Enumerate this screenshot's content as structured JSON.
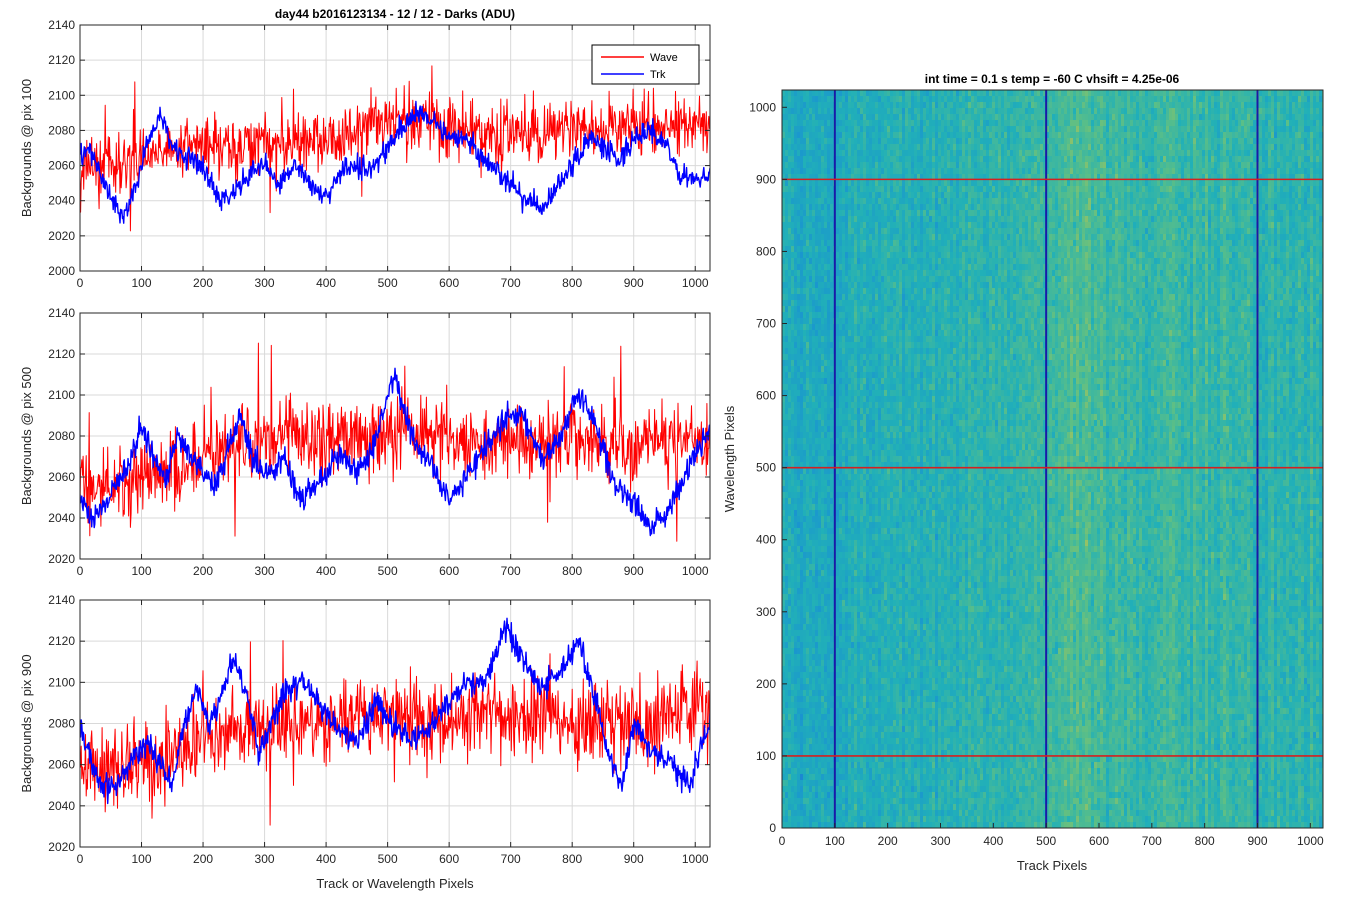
{
  "figure_title": "day44 b2016123134 - 12 / 12 - Darks (ADU)",
  "chart_data": [
    {
      "type": "line",
      "ylabel": "Backgrounds @ pix 100",
      "xlabel": "",
      "xlim": [
        0,
        1024
      ],
      "ylim": [
        2000,
        2140
      ],
      "xticks": [
        0,
        100,
        200,
        300,
        400,
        500,
        600,
        700,
        800,
        900,
        1000
      ],
      "yticks": [
        2000,
        2020,
        2040,
        2060,
        2080,
        2100,
        2120,
        2140
      ],
      "grid": true,
      "legend": "top-right",
      "series": [
        {
          "name": "Wave",
          "color": "#ff0000",
          "mean": 2075,
          "trend": 0.012,
          "noise": 12,
          "x": [
            0,
            100,
            200,
            300,
            400,
            500,
            600,
            700,
            800,
            900,
            1000,
            1024
          ],
          "y": [
            2060,
            2065,
            2070,
            2072,
            2075,
            2085,
            2082,
            2078,
            2080,
            2083,
            2085,
            2082
          ]
        },
        {
          "name": "Trk",
          "color": "#0000ff",
          "x": [
            0,
            15,
            30,
            50,
            70,
            90,
            110,
            130,
            150,
            175,
            200,
            225,
            250,
            275,
            300,
            325,
            350,
            375,
            400,
            425,
            450,
            475,
            500,
            525,
            550,
            575,
            600,
            625,
            650,
            675,
            700,
            725,
            750,
            775,
            800,
            825,
            850,
            875,
            900,
            925,
            950,
            975,
            1000,
            1024
          ],
          "y": [
            2065,
            2070,
            2058,
            2042,
            2030,
            2048,
            2072,
            2090,
            2070,
            2065,
            2060,
            2040,
            2045,
            2055,
            2062,
            2048,
            2062,
            2048,
            2042,
            2058,
            2060,
            2058,
            2070,
            2082,
            2090,
            2085,
            2075,
            2078,
            2065,
            2058,
            2050,
            2040,
            2035,
            2048,
            2060,
            2075,
            2072,
            2062,
            2075,
            2080,
            2072,
            2055,
            2050,
            2058
          ]
        }
      ]
    },
    {
      "type": "line",
      "ylabel": "Backgrounds @ pix 500",
      "xlabel": "",
      "xlim": [
        0,
        1024
      ],
      "ylim": [
        2020,
        2140
      ],
      "xticks": [
        0,
        100,
        200,
        300,
        400,
        500,
        600,
        700,
        800,
        900,
        1000
      ],
      "yticks": [
        2020,
        2040,
        2060,
        2080,
        2100,
        2120,
        2140
      ],
      "grid": true,
      "series": [
        {
          "name": "Wave",
          "color": "#ff0000",
          "mean": 2075,
          "trend": 0.01,
          "noise": 13,
          "x": [
            0,
            100,
            200,
            300,
            400,
            500,
            600,
            700,
            800,
            900,
            1000,
            1024
          ],
          "y": [
            2055,
            2060,
            2070,
            2078,
            2080,
            2082,
            2080,
            2075,
            2080,
            2075,
            2080,
            2075
          ]
        },
        {
          "name": "Trk",
          "color": "#0000ff",
          "x": [
            0,
            20,
            40,
            60,
            80,
            100,
            120,
            140,
            160,
            180,
            200,
            220,
            240,
            260,
            280,
            300,
            330,
            360,
            390,
            420,
            450,
            470,
            490,
            510,
            540,
            570,
            600,
            630,
            660,
            690,
            720,
            750,
            780,
            810,
            840,
            870,
            900,
            930,
            960,
            990,
            1024
          ],
          "y": [
            2050,
            2040,
            2045,
            2060,
            2065,
            2085,
            2070,
            2060,
            2080,
            2070,
            2062,
            2055,
            2075,
            2090,
            2070,
            2062,
            2070,
            2048,
            2060,
            2070,
            2065,
            2068,
            2090,
            2110,
            2080,
            2065,
            2050,
            2060,
            2075,
            2088,
            2090,
            2068,
            2080,
            2100,
            2085,
            2055,
            2048,
            2035,
            2045,
            2065,
            2085
          ]
        }
      ]
    },
    {
      "type": "line",
      "ylabel": "Backgrounds @ pix 900",
      "xlabel": "Track or Wavelength Pixels",
      "xlim": [
        0,
        1024
      ],
      "ylim": [
        2020,
        2140
      ],
      "xticks": [
        0,
        100,
        200,
        300,
        400,
        500,
        600,
        700,
        800,
        900,
        1000
      ],
      "yticks": [
        2020,
        2040,
        2060,
        2080,
        2100,
        2120,
        2140
      ],
      "grid": true,
      "series": [
        {
          "name": "Wave",
          "color": "#ff0000",
          "mean": 2078,
          "trend": 0.01,
          "noise": 14,
          "x": [
            0,
            100,
            200,
            300,
            400,
            500,
            600,
            700,
            800,
            900,
            1000,
            1024
          ],
          "y": [
            2055,
            2062,
            2070,
            2078,
            2082,
            2085,
            2082,
            2085,
            2080,
            2080,
            2085,
            2085
          ]
        },
        {
          "name": "Trk",
          "color": "#0000ff",
          "x": [
            0,
            15,
            30,
            50,
            70,
            90,
            110,
            130,
            150,
            170,
            190,
            210,
            230,
            250,
            270,
            290,
            310,
            330,
            360,
            390,
            420,
            450,
            480,
            510,
            540,
            570,
            600,
            630,
            660,
            690,
            720,
            750,
            780,
            810,
            840,
            860,
            880,
            900,
            930,
            960,
            990,
            1024
          ],
          "y": [
            2080,
            2065,
            2052,
            2048,
            2055,
            2065,
            2070,
            2060,
            2050,
            2080,
            2098,
            2080,
            2095,
            2110,
            2095,
            2065,
            2080,
            2095,
            2100,
            2090,
            2078,
            2070,
            2090,
            2080,
            2072,
            2078,
            2090,
            2100,
            2100,
            2128,
            2110,
            2098,
            2105,
            2120,
            2090,
            2062,
            2050,
            2080,
            2065,
            2062,
            2050,
            2080
          ]
        }
      ]
    },
    {
      "type": "heatmap",
      "title": "int time = 0.1 s   temp = -60 C   vhsift = 4.25e-06",
      "xlabel": "Track Pixels",
      "ylabel": "Wavelength Pixels",
      "xlim": [
        0,
        1024
      ],
      "ylim": [
        0,
        1024
      ],
      "xticks": [
        0,
        100,
        200,
        300,
        400,
        500,
        600,
        700,
        800,
        900,
        1000
      ],
      "yticks": [
        0,
        100,
        200,
        300,
        400,
        500,
        600,
        700,
        800,
        900,
        1000
      ],
      "colormap": [
        "#1f5bd8",
        "#1a96cf",
        "#21b0b8",
        "#5cbf86",
        "#b9c451"
      ],
      "column_profile": {
        "x": [
          0,
          100,
          200,
          300,
          400,
          500,
          560,
          600,
          700,
          800,
          900,
          1024
        ],
        "level": [
          0.45,
          0.42,
          0.5,
          0.52,
          0.55,
          0.6,
          0.7,
          0.62,
          0.58,
          0.6,
          0.55,
          0.58
        ]
      },
      "vertical_lines": [
        100,
        500,
        900
      ],
      "vertical_line_color": "#1a1aa8",
      "horizontal_lines": [
        100,
        500,
        900
      ],
      "horizontal_line_color": "#d42020"
    }
  ]
}
